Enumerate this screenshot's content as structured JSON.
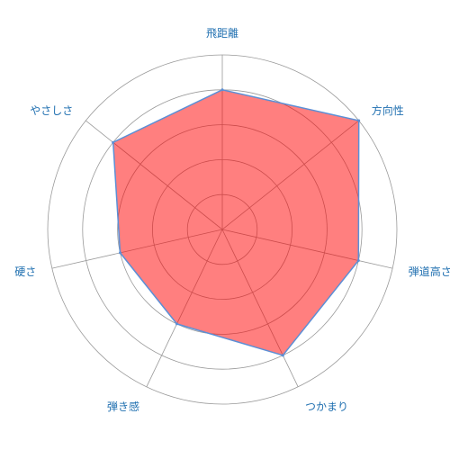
{
  "chart_data": {
    "type": "radar",
    "axes": [
      "飛距離",
      "方向性",
      "弾道高さ",
      "つかまり",
      "弾き感",
      "硬さ",
      "やさしさ"
    ],
    "values": [
      4,
      5,
      4,
      4,
      3,
      3,
      4
    ],
    "range": [
      0,
      5
    ],
    "ring_count": 5,
    "grid": true,
    "legend": "none"
  },
  "colors": {
    "fill": "#ff0000",
    "fill_opacity": 0.5,
    "stroke": "#5b8fd6",
    "grid": "#999999",
    "label": "#1f6fb0"
  }
}
